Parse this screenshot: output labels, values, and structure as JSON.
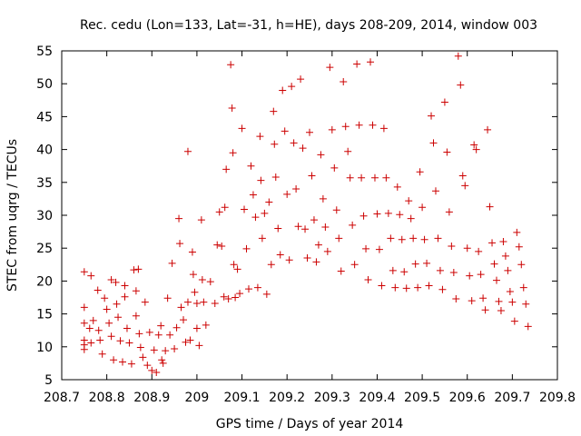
{
  "chart_data": {
    "type": "scatter",
    "title": "Rec. cedu (Lon=133, Lat=-31, h=HE), days 208-209, 2014, window 003",
    "xlabel": "GPS time / Days of year 2014",
    "ylabel": "STEC from uqrg / TECUs",
    "xlim": [
      208.7,
      209.8
    ],
    "ylim": [
      5,
      55
    ],
    "xticks": [
      208.7,
      208.8,
      208.9,
      209.0,
      209.1,
      209.2,
      209.3,
      209.4,
      209.5,
      209.6,
      209.7,
      209.8
    ],
    "xtick_labels": [
      "208.7",
      "208.8",
      "208.9",
      "209",
      "209.1",
      "209.2",
      "209.3",
      "209.4",
      "209.5",
      "209.6",
      "209.7",
      "209.8"
    ],
    "yticks": [
      5,
      10,
      15,
      20,
      25,
      30,
      35,
      40,
      45,
      50,
      55
    ],
    "ytick_labels": [
      "5",
      "10",
      "15",
      "20",
      "25",
      "30",
      "35",
      "40",
      "45",
      "50",
      "55"
    ],
    "grid": false,
    "marker": "+",
    "marker_color": "#cc0000",
    "series": [
      {
        "name": "STEC",
        "points": [
          [
            208.75,
            21.4
          ],
          [
            208.765,
            20.8
          ],
          [
            208.75,
            16.0
          ],
          [
            208.75,
            13.6
          ],
          [
            208.75,
            11.0
          ],
          [
            208.75,
            10.3
          ],
          [
            208.75,
            9.6
          ],
          [
            208.762,
            12.8
          ],
          [
            208.765,
            10.6
          ],
          [
            208.77,
            14.0
          ],
          [
            208.78,
            18.6
          ],
          [
            208.782,
            12.5
          ],
          [
            208.785,
            11.0
          ],
          [
            208.79,
            8.9
          ],
          [
            208.795,
            17.4
          ],
          [
            208.8,
            15.7
          ],
          [
            208.805,
            13.6
          ],
          [
            208.81,
            20.2
          ],
          [
            208.81,
            11.6
          ],
          [
            208.815,
            8.0
          ],
          [
            208.82,
            19.8
          ],
          [
            208.822,
            16.5
          ],
          [
            208.825,
            14.5
          ],
          [
            208.83,
            10.9
          ],
          [
            208.835,
            7.7
          ],
          [
            208.84,
            19.3
          ],
          [
            208.84,
            17.6
          ],
          [
            208.845,
            12.8
          ],
          [
            208.85,
            10.6
          ],
          [
            208.855,
            7.4
          ],
          [
            208.86,
            21.7
          ],
          [
            208.865,
            18.5
          ],
          [
            208.865,
            14.7
          ],
          [
            208.87,
            21.8
          ],
          [
            208.872,
            12.0
          ],
          [
            208.875,
            9.9
          ],
          [
            208.88,
            8.4
          ],
          [
            208.885,
            16.8
          ],
          [
            208.89,
            7.2
          ],
          [
            208.895,
            12.2
          ],
          [
            208.9,
            6.4
          ],
          [
            208.905,
            9.5
          ],
          [
            208.91,
            6.1
          ],
          [
            208.915,
            11.8
          ],
          [
            208.92,
            13.2
          ],
          [
            208.922,
            8.0
          ],
          [
            208.925,
            7.5
          ],
          [
            208.93,
            9.4
          ],
          [
            208.935,
            17.4
          ],
          [
            208.94,
            11.8
          ],
          [
            208.945,
            22.7
          ],
          [
            208.95,
            9.7
          ],
          [
            208.955,
            12.9
          ],
          [
            208.96,
            29.5
          ],
          [
            208.962,
            25.7
          ],
          [
            208.965,
            16.0
          ],
          [
            208.97,
            14.1
          ],
          [
            208.975,
            10.7
          ],
          [
            208.98,
            39.7
          ],
          [
            208.98,
            16.8
          ],
          [
            208.985,
            11.0
          ],
          [
            208.99,
            24.4
          ],
          [
            208.992,
            21.0
          ],
          [
            208.995,
            18.3
          ],
          [
            209.0,
            16.6
          ],
          [
            209.0,
            12.8
          ],
          [
            209.005,
            10.2
          ],
          [
            209.01,
            29.3
          ],
          [
            209.012,
            20.2
          ],
          [
            209.015,
            16.8
          ],
          [
            209.02,
            13.3
          ],
          [
            209.03,
            19.9
          ],
          [
            209.04,
            16.6
          ],
          [
            209.045,
            25.5
          ],
          [
            209.05,
            30.5
          ],
          [
            209.055,
            25.3
          ],
          [
            209.06,
            17.6
          ],
          [
            209.062,
            31.2
          ],
          [
            209.065,
            37.0
          ],
          [
            209.07,
            17.3
          ],
          [
            209.075,
            52.9
          ],
          [
            209.078,
            46.3
          ],
          [
            209.08,
            39.5
          ],
          [
            209.082,
            22.5
          ],
          [
            209.085,
            17.5
          ],
          [
            209.09,
            21.8
          ],
          [
            209.095,
            18.1
          ],
          [
            209.1,
            43.2
          ],
          [
            209.105,
            30.9
          ],
          [
            209.11,
            24.9
          ],
          [
            209.115,
            18.8
          ],
          [
            209.12,
            37.5
          ],
          [
            209.125,
            33.1
          ],
          [
            209.13,
            29.7
          ],
          [
            209.135,
            19.0
          ],
          [
            209.14,
            42.0
          ],
          [
            209.142,
            35.3
          ],
          [
            209.145,
            26.5
          ],
          [
            209.15,
            30.3
          ],
          [
            209.155,
            18.0
          ],
          [
            209.16,
            32.0
          ],
          [
            209.165,
            22.5
          ],
          [
            209.17,
            45.8
          ],
          [
            209.172,
            40.8
          ],
          [
            209.175,
            35.8
          ],
          [
            209.18,
            28.0
          ],
          [
            209.185,
            24.0
          ],
          [
            209.19,
            49.0
          ],
          [
            209.195,
            42.8
          ],
          [
            209.2,
            33.2
          ],
          [
            209.205,
            23.2
          ],
          [
            209.21,
            49.6
          ],
          [
            209.215,
            41.0
          ],
          [
            209.22,
            34.0
          ],
          [
            209.225,
            28.3
          ],
          [
            209.23,
            50.7
          ],
          [
            209.235,
            40.2
          ],
          [
            209.24,
            27.9
          ],
          [
            209.245,
            23.5
          ],
          [
            209.25,
            42.6
          ],
          [
            209.255,
            36.0
          ],
          [
            209.26,
            29.3
          ],
          [
            209.265,
            22.9
          ],
          [
            209.27,
            25.5
          ],
          [
            209.275,
            39.2
          ],
          [
            209.28,
            32.5
          ],
          [
            209.285,
            28.2
          ],
          [
            209.29,
            24.5
          ],
          [
            209.295,
            52.5
          ],
          [
            209.3,
            43.0
          ],
          [
            209.305,
            37.2
          ],
          [
            209.31,
            30.8
          ],
          [
            209.315,
            26.5
          ],
          [
            209.32,
            21.5
          ],
          [
            209.325,
            50.3
          ],
          [
            209.33,
            43.5
          ],
          [
            209.335,
            39.7
          ],
          [
            209.34,
            35.7
          ],
          [
            209.345,
            28.5
          ],
          [
            209.35,
            22.5
          ],
          [
            209.355,
            53.0
          ],
          [
            209.36,
            43.7
          ],
          [
            209.365,
            35.7
          ],
          [
            209.37,
            29.9
          ],
          [
            209.375,
            24.9
          ],
          [
            209.38,
            20.2
          ],
          [
            209.385,
            53.3
          ],
          [
            209.39,
            43.7
          ],
          [
            209.395,
            35.7
          ],
          [
            209.4,
            30.2
          ],
          [
            209.405,
            24.8
          ],
          [
            209.41,
            19.3
          ],
          [
            209.415,
            43.2
          ],
          [
            209.42,
            35.7
          ],
          [
            209.425,
            30.3
          ],
          [
            209.43,
            26.5
          ],
          [
            209.435,
            21.6
          ],
          [
            209.44,
            19.0
          ],
          [
            209.445,
            34.3
          ],
          [
            209.45,
            30.1
          ],
          [
            209.455,
            26.3
          ],
          [
            209.46,
            21.4
          ],
          [
            209.465,
            18.9
          ],
          [
            209.47,
            32.2
          ],
          [
            209.475,
            29.5
          ],
          [
            209.48,
            26.5
          ],
          [
            209.485,
            22.6
          ],
          [
            209.49,
            19.0
          ],
          [
            209.495,
            36.6
          ],
          [
            209.5,
            31.2
          ],
          [
            209.505,
            26.3
          ],
          [
            209.51,
            22.7
          ],
          [
            209.515,
            19.3
          ],
          [
            209.52,
            45.1
          ],
          [
            209.525,
            41.0
          ],
          [
            209.53,
            33.7
          ],
          [
            209.535,
            26.5
          ],
          [
            209.54,
            21.6
          ],
          [
            209.545,
            18.7
          ],
          [
            209.55,
            47.2
          ],
          [
            209.555,
            39.6
          ],
          [
            209.56,
            30.5
          ],
          [
            209.565,
            25.3
          ],
          [
            209.57,
            21.3
          ],
          [
            209.575,
            17.3
          ],
          [
            209.58,
            54.2
          ],
          [
            209.585,
            49.8
          ],
          [
            209.59,
            36.0
          ],
          [
            209.595,
            34.5
          ],
          [
            209.6,
            25.0
          ],
          [
            209.605,
            20.8
          ],
          [
            209.61,
            17.0
          ],
          [
            209.615,
            40.7
          ],
          [
            209.62,
            40.0
          ],
          [
            209.625,
            24.5
          ],
          [
            209.63,
            21.0
          ],
          [
            209.635,
            17.4
          ],
          [
            209.64,
            15.6
          ],
          [
            209.645,
            43.0
          ],
          [
            209.65,
            31.3
          ],
          [
            209.655,
            25.8
          ],
          [
            209.66,
            22.6
          ],
          [
            209.665,
            20.1
          ],
          [
            209.67,
            16.9
          ],
          [
            209.675,
            15.5
          ],
          [
            209.68,
            26.0
          ],
          [
            209.685,
            23.8
          ],
          [
            209.69,
            21.6
          ],
          [
            209.695,
            18.4
          ],
          [
            209.7,
            16.8
          ],
          [
            209.705,
            13.9
          ],
          [
            209.71,
            27.4
          ],
          [
            209.715,
            25.2
          ],
          [
            209.72,
            22.5
          ],
          [
            209.725,
            19.0
          ],
          [
            209.73,
            16.5
          ],
          [
            209.735,
            13.1
          ]
        ]
      }
    ]
  }
}
